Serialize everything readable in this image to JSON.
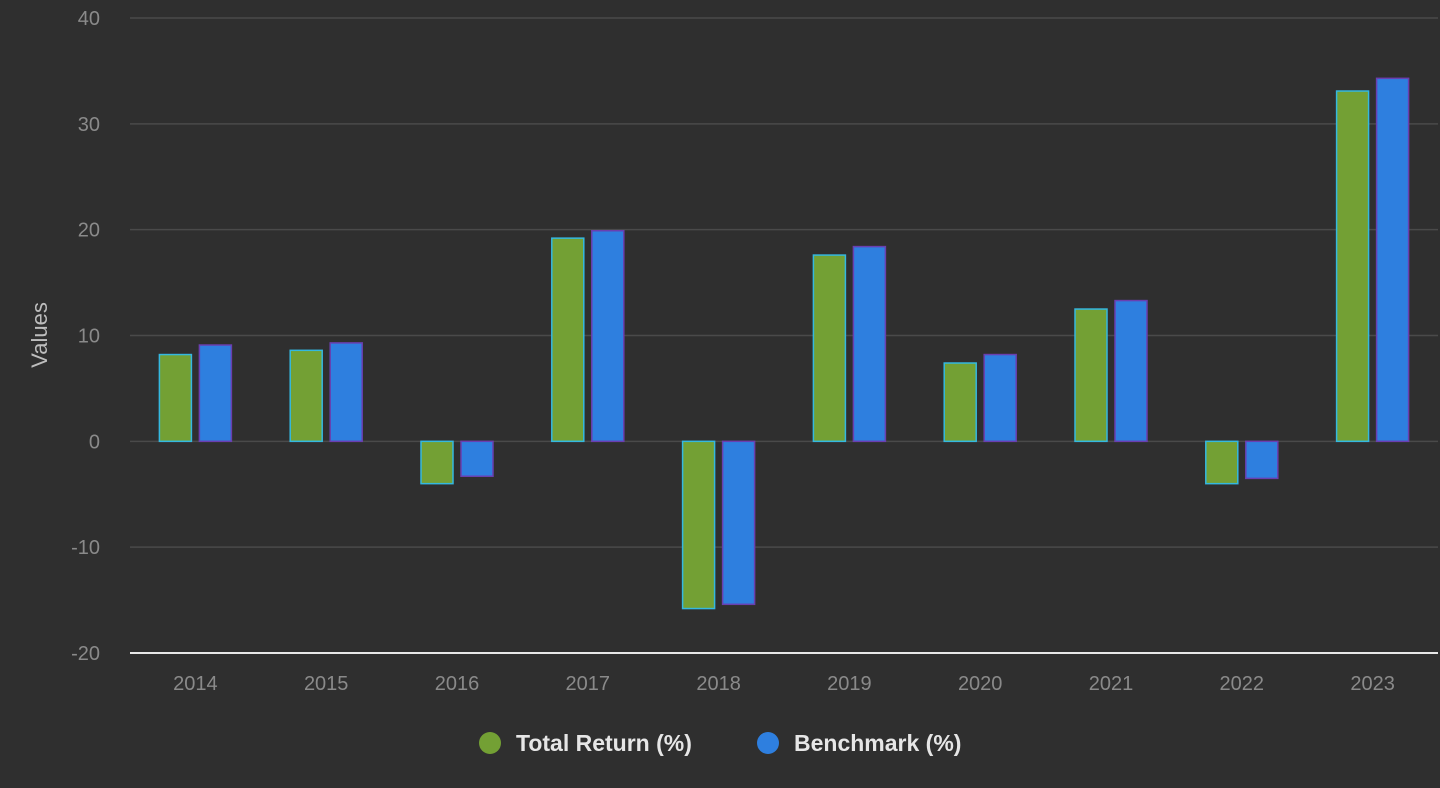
{
  "chart_data": {
    "type": "bar",
    "title": "",
    "xlabel": "",
    "ylabel": "Values",
    "ylim": [
      -20,
      40
    ],
    "yticks": [
      -20,
      -10,
      0,
      10,
      20,
      30,
      40
    ],
    "grid": true,
    "legend_position": "bottom-center",
    "categories": [
      "2014",
      "2015",
      "2016",
      "2017",
      "2018",
      "2019",
      "2020",
      "2021",
      "2022",
      "2023"
    ],
    "series": [
      {
        "name": "Total Return (%)",
        "color": "#73a034",
        "border_color": "#34b8e0",
        "values": [
          8.2,
          8.6,
          -4.0,
          19.2,
          -15.8,
          17.6,
          7.4,
          12.5,
          -4.0,
          33.1
        ]
      },
      {
        "name": "Benchmark (%)",
        "color": "#2e7fdf",
        "border_color": "#6a3fb0",
        "values": [
          9.1,
          9.3,
          -3.3,
          19.9,
          -15.4,
          18.4,
          8.2,
          13.3,
          -3.5,
          34.3
        ]
      }
    ]
  }
}
